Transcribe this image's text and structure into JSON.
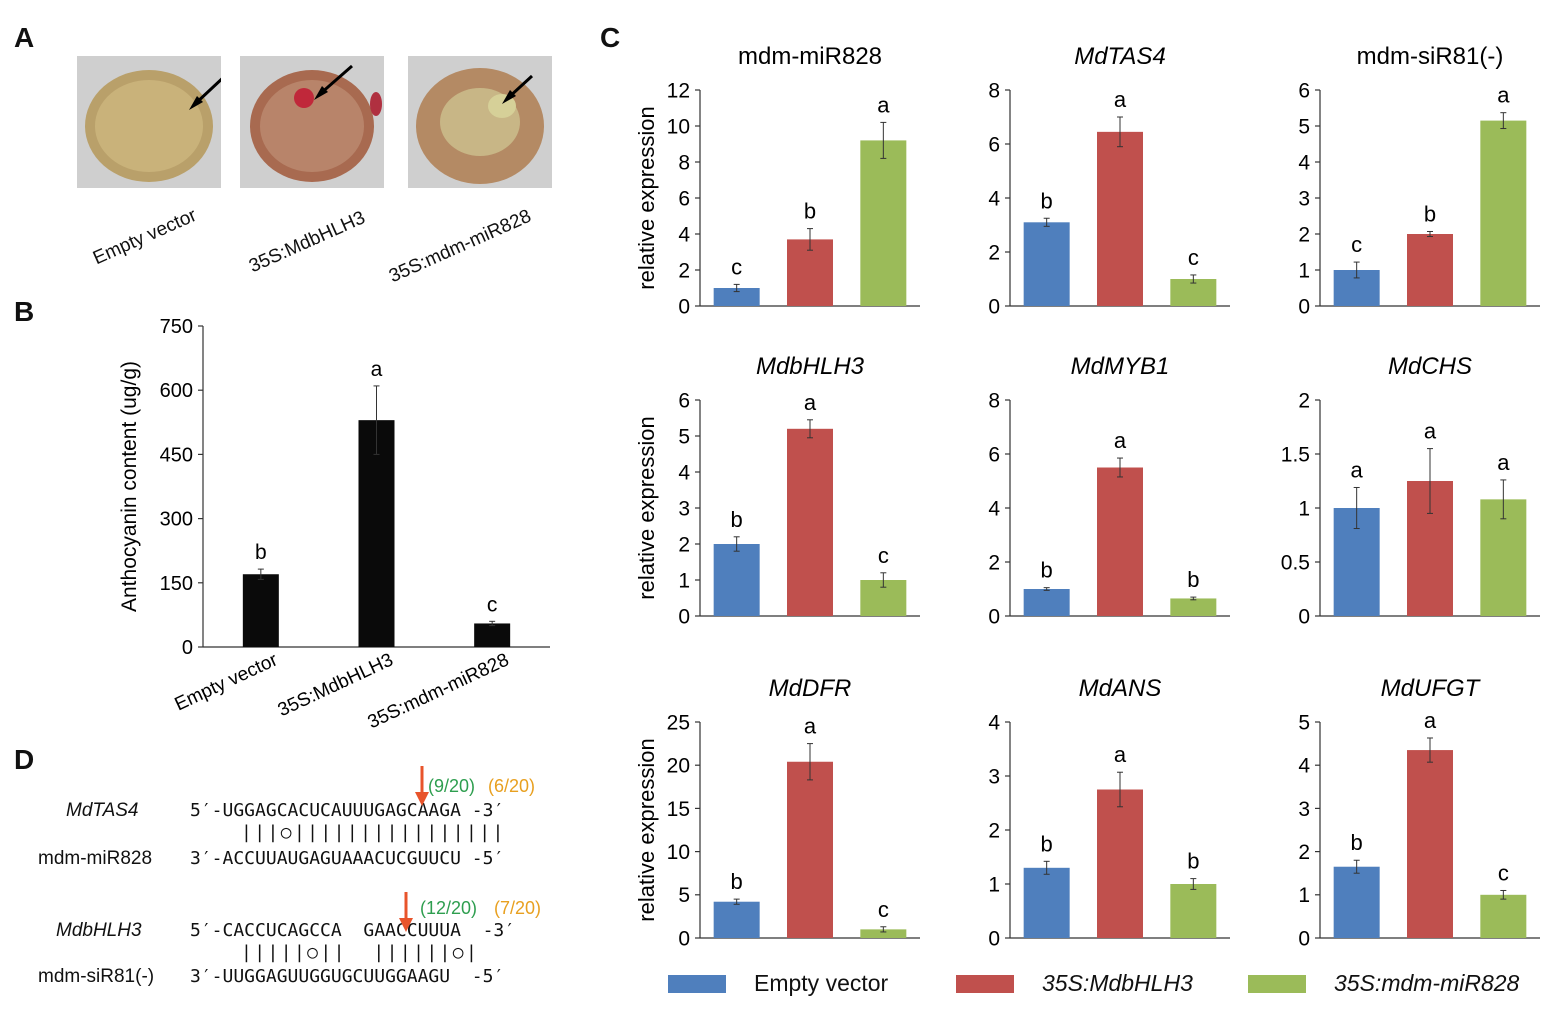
{
  "panels": {
    "a": "A",
    "b": "B",
    "c": "C",
    "d": "D"
  },
  "photos": [
    {
      "label": "Empty vector",
      "spot": "none"
    },
    {
      "label": "35S:MdbHLH3",
      "spot": "red"
    },
    {
      "label": "35S:mdm-miR828",
      "spot": "pale"
    }
  ],
  "colors": {
    "empty": "#4f7fbd",
    "bhlh": "#c0504d",
    "mir": "#9bbb59",
    "black": "#0a0a0a",
    "arrow_red": "#e8542b",
    "green_text": "#2e9e4f",
    "orange_text": "#e8a020"
  },
  "chart_data": [
    {
      "id": "B",
      "type": "bar",
      "title": "",
      "ylabel": "Anthocyanin content (ug/g)",
      "categories": [
        "Empty vector",
        "35S:MdbHLH3",
        "35S:mdm-miR828"
      ],
      "values": [
        170,
        530,
        55
      ],
      "errors": [
        12,
        80,
        5
      ],
      "letters": [
        "b",
        "a",
        "c"
      ],
      "ylim": [
        0,
        750
      ],
      "ticks": [
        0,
        150,
        300,
        450,
        600,
        750
      ]
    },
    {
      "id": "c1",
      "type": "bar",
      "title": "mdm-miR828",
      "italic": false,
      "ylabel": "relative expression",
      "categories": [
        "Empty vector",
        "35S:MdbHLH3",
        "35S:mdm-miR828"
      ],
      "values": [
        1.0,
        3.7,
        9.2
      ],
      "errors": [
        0.2,
        0.6,
        1.0
      ],
      "letters": [
        "c",
        "b",
        "a"
      ],
      "ylim": [
        0,
        12
      ],
      "ticks": [
        "0",
        "2",
        "4",
        "6",
        "8",
        "10",
        "12"
      ]
    },
    {
      "id": "c2",
      "type": "bar",
      "title": "MdTAS4",
      "italic": true,
      "ylabel": "",
      "categories": [
        "Empty vector",
        "35S:MdbHLH3",
        "35S:mdm-miR828"
      ],
      "values": [
        3.1,
        6.45,
        1.0
      ],
      "errors": [
        0.15,
        0.55,
        0.15
      ],
      "letters": [
        "b",
        "a",
        "c"
      ],
      "ylim": [
        0,
        8
      ],
      "ticks": [
        "0",
        "2",
        "4",
        "6",
        "8"
      ]
    },
    {
      "id": "c3",
      "type": "bar",
      "title": "mdm-siR81(-)",
      "italic": false,
      "ylabel": "",
      "categories": [
        "Empty vector",
        "35S:MdbHLH3",
        "35S:mdm-miR828"
      ],
      "values": [
        1.0,
        2.0,
        5.15
      ],
      "errors": [
        0.22,
        0.07,
        0.22
      ],
      "letters": [
        "c",
        "b",
        "a"
      ],
      "ylim": [
        0,
        6
      ],
      "ticks": [
        "0",
        "1",
        "2",
        "3",
        "4",
        "5",
        "6"
      ]
    },
    {
      "id": "c4",
      "type": "bar",
      "title": "MdbHLH3",
      "italic": true,
      "ylabel": "relative expression",
      "categories": [
        "Empty vector",
        "35S:MdbHLH3",
        "35S:mdm-miR828"
      ],
      "values": [
        2.0,
        5.2,
        1.0
      ],
      "errors": [
        0.2,
        0.25,
        0.2
      ],
      "letters": [
        "b",
        "a",
        "c"
      ],
      "ylim": [
        0,
        6
      ],
      "ticks": [
        "0",
        "1",
        "2",
        "3",
        "4",
        "5",
        "6"
      ]
    },
    {
      "id": "c5",
      "type": "bar",
      "title": "MdMYB1",
      "italic": true,
      "ylabel": "",
      "categories": [
        "Empty vector",
        "35S:MdbHLH3",
        "35S:mdm-miR828"
      ],
      "values": [
        1.0,
        5.5,
        0.65
      ],
      "errors": [
        0.05,
        0.35,
        0.05
      ],
      "letters": [
        "b",
        "a",
        "b"
      ],
      "ylim": [
        0,
        8
      ],
      "ticks": [
        "0",
        "2",
        "4",
        "6",
        "8"
      ]
    },
    {
      "id": "c6",
      "type": "bar",
      "title": "MdCHS",
      "italic": true,
      "ylabel": "",
      "categories": [
        "Empty vector",
        "35S:MdbHLH3",
        "35S:mdm-miR828"
      ],
      "values": [
        1.0,
        1.25,
        1.08
      ],
      "errors": [
        0.19,
        0.3,
        0.18
      ],
      "letters": [
        "a",
        "a",
        "a"
      ],
      "ylim": [
        0,
        2
      ],
      "ticks": [
        "0",
        "0.5",
        "1",
        "1.5",
        "2"
      ]
    },
    {
      "id": "c7",
      "type": "bar",
      "title": "MdDFR",
      "italic": true,
      "ylabel": "relative expression",
      "categories": [
        "Empty vector",
        "35S:MdbHLH3",
        "35S:mdm-miR828"
      ],
      "values": [
        4.2,
        20.4,
        1.0
      ],
      "errors": [
        0.3,
        2.1,
        0.3
      ],
      "letters": [
        "b",
        "a",
        "c"
      ],
      "ylim": [
        0,
        25
      ],
      "ticks": [
        "0",
        "5",
        "10",
        "15",
        "20",
        "25"
      ]
    },
    {
      "id": "c8",
      "type": "bar",
      "title": "MdANS",
      "italic": true,
      "ylabel": "",
      "categories": [
        "Empty vector",
        "35S:MdbHLH3",
        "35S:mdm-miR828"
      ],
      "values": [
        1.3,
        2.75,
        1.0
      ],
      "errors": [
        0.12,
        0.32,
        0.1
      ],
      "letters": [
        "b",
        "a",
        "b"
      ],
      "ylim": [
        0,
        4
      ],
      "ticks": [
        "0",
        "1",
        "2",
        "3",
        "4"
      ]
    },
    {
      "id": "c9",
      "type": "bar",
      "title": "MdUFGT",
      "italic": true,
      "ylabel": "",
      "categories": [
        "Empty vector",
        "35S:MdbHLH3",
        "35S:mdm-miR828"
      ],
      "values": [
        1.65,
        4.35,
        1.0
      ],
      "errors": [
        0.15,
        0.28,
        0.1
      ],
      "letters": [
        "b",
        "a",
        "c"
      ],
      "ylim": [
        0,
        5
      ],
      "ticks": [
        "0",
        "1",
        "2",
        "3",
        "4",
        "5"
      ]
    }
  ],
  "panel_d": {
    "pair1": {
      "name_top": "MdTAS4",
      "seq_top": "5′-UGGAGCACUCAUUUGAGCAAGA -3′",
      "pairing": "|||○||||||||||||||||",
      "name_bottom": "mdm-miR828",
      "seq_bottom": "3′-ACCUUAUGAGUAAACUCGUUCU -5′",
      "count_green": "(9/20)",
      "count_orange": "(6/20)"
    },
    "pair2": {
      "name_top": "MdbHLH3",
      "seq_top": "5′-CACCUCAGCCA  GAACCUUUA  -3′",
      "pairing": "|||||○||  ||||||○|",
      "name_bottom": "mdm-siR81(-)",
      "seq_bottom": "3′-UUGGAGUUGGUGCUUGGAAGU  -5′",
      "count_green": "(12/20)",
      "count_orange": "(7/20)"
    }
  },
  "legend": [
    "Empty vector",
    "35S:MdbHLH3",
    "35S:mdm-miR828"
  ]
}
